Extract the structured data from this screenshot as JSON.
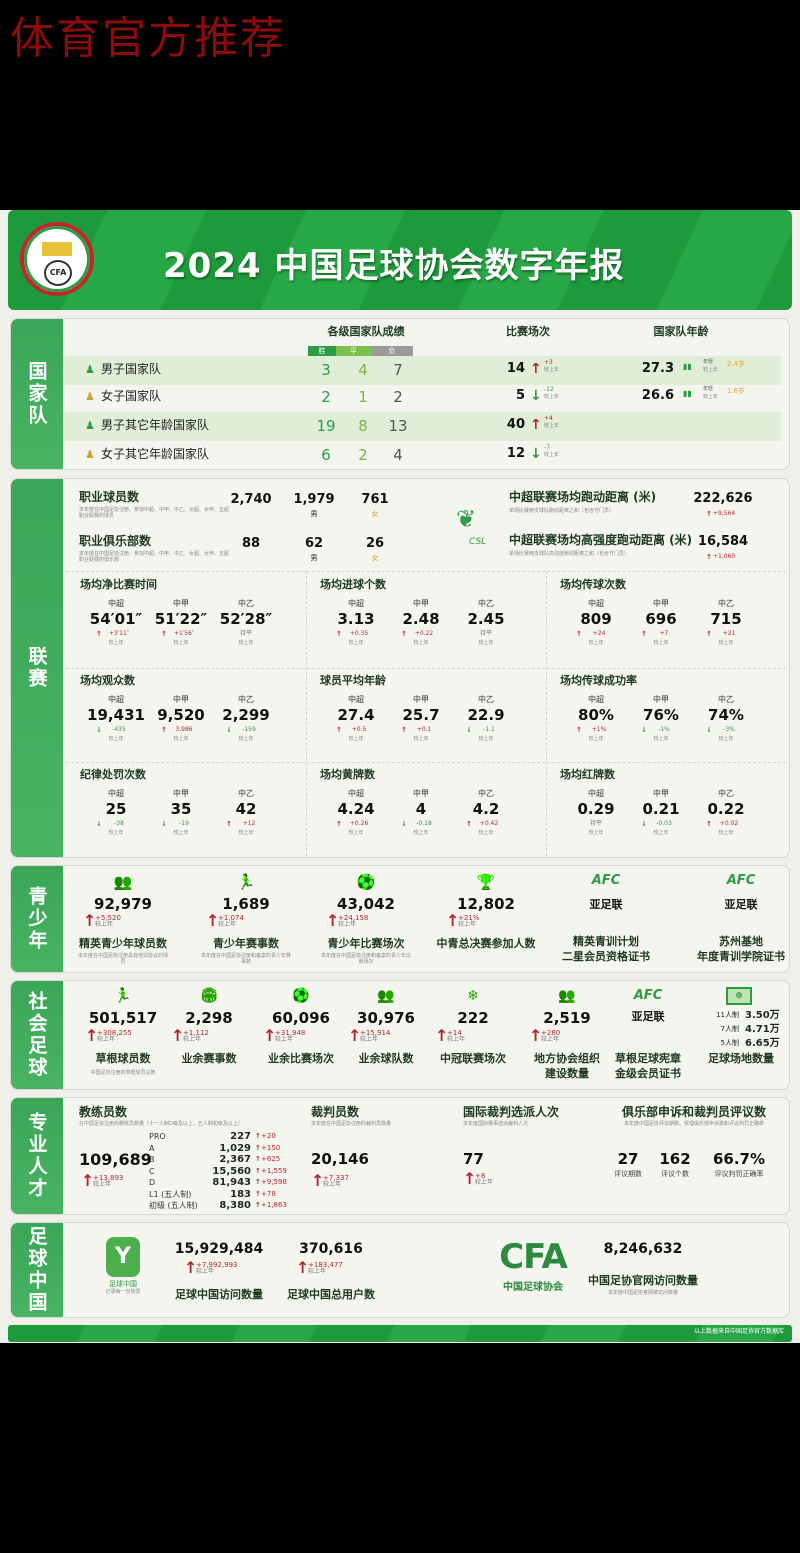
{
  "promo_text": "体育官方推荐",
  "header": {
    "title": "2024 中国足球协会数字年报",
    "logo_text": "CFA",
    "logo_ring_text": "中国足球协会"
  },
  "colors": {
    "brand_green": "#2e9b45",
    "increase": "#b3262e",
    "decrease": "#3f8f45",
    "row_highlight": "#e0eed7"
  },
  "national_team": {
    "label": "国家队",
    "headers": {
      "results": "各级国家队成绩",
      "matches": "比赛场次",
      "age": "国家队年龄"
    },
    "wdl": [
      "胜",
      "平",
      "负"
    ],
    "rows": [
      {
        "name": "男子国家队",
        "icon": "male-person-icon",
        "w": "3",
        "d": "4",
        "l": "7",
        "matches": "14",
        "dir": "up",
        "delta": "+3",
        "cmp": "较上年",
        "age": "27.3",
        "age_tag": "年轻",
        "age_cmp": "较上年",
        "age_delta": "2.4岁"
      },
      {
        "name": "女子国家队",
        "icon": "female-person-icon",
        "w": "2",
        "d": "1",
        "l": "2",
        "matches": "5",
        "dir": "down",
        "delta": "-12",
        "cmp": "较上年",
        "age": "26.6",
        "age_tag": "年轻",
        "age_cmp": "较上年",
        "age_delta": "1.6岁"
      },
      {
        "name": "男子其它年龄国家队",
        "icon": "male-person-icon",
        "w": "19",
        "d": "8",
        "l": "13",
        "matches": "40",
        "dir": "up",
        "delta": "+4",
        "cmp": "较上年"
      },
      {
        "name": "女子其它年龄国家队",
        "icon": "female-person-icon",
        "w": "6",
        "d": "2",
        "l": "4",
        "matches": "12",
        "dir": "down",
        "delta": "-7",
        "cmp": "较上年"
      }
    ]
  },
  "league": {
    "label": "联赛",
    "pro_players": {
      "title": "职业球员数",
      "desc": "本年度在中国足协注册、参加中超、中甲、中乙、女超、女甲、五超职业联赛的球员",
      "total": "2,740",
      "male": "1,979",
      "female": "761",
      "male_label": "男",
      "female_label": "女"
    },
    "pro_clubs": {
      "title": "职业俱乐部数",
      "desc": "本年度在中国足协注册、参加中超、中甲、中乙、女超、女甲、五超职业联赛的俱乐部",
      "total": "88",
      "male": "62",
      "female": "26",
      "male_label": "男",
      "female_label": "女"
    },
    "csl_logo_text": "CSL",
    "running": {
      "title": "中超联赛场均跑动距离 (米)",
      "desc": "单场比赛两支球队跑动距离之和（包含守门员）",
      "value": "222,626",
      "delta": "+9,564"
    },
    "hi_running": {
      "title": "中超联赛场均高强度跑动距离 (米)",
      "desc": "单场比赛两支球队高强度跑动距离之和（包含守门员）",
      "value": "16,584",
      "delta": "+1,060"
    },
    "leagues": [
      "中超",
      "中甲",
      "中乙"
    ],
    "cmp": "较上年",
    "grid": [
      {
        "title": "场均净比赛时间",
        "values": [
          "54′01″",
          "51′22″",
          "52′28″"
        ],
        "deltas": [
          {
            "dir": "up",
            "text": "+3′11″"
          },
          {
            "dir": "up",
            "text": "+1′56″"
          },
          {
            "dir": "flat",
            "text": "持平"
          }
        ]
      },
      {
        "title": "场均进球个数",
        "values": [
          "3.13",
          "2.48",
          "2.45"
        ],
        "deltas": [
          {
            "dir": "up",
            "text": "+0.35"
          },
          {
            "dir": "up",
            "text": "+0.22"
          },
          {
            "dir": "flat",
            "text": "持平"
          }
        ]
      },
      {
        "title": "场均传球次数",
        "values": [
          "809",
          "696",
          "715"
        ],
        "deltas": [
          {
            "dir": "up",
            "text": "+24"
          },
          {
            "dir": "up",
            "text": "+7"
          },
          {
            "dir": "up",
            "text": "+21"
          }
        ]
      },
      {
        "title": "场均观众数",
        "values": [
          "19,431",
          "9,520",
          "2,299"
        ],
        "deltas": [
          {
            "dir": "down",
            "text": "-435"
          },
          {
            "dir": "up",
            "text": "3,986"
          },
          {
            "dir": "down",
            "text": "-159"
          }
        ]
      },
      {
        "title": "球员平均年龄",
        "values": [
          "27.4",
          "25.7",
          "22.9"
        ],
        "deltas": [
          {
            "dir": "up",
            "text": "+0.5"
          },
          {
            "dir": "up",
            "text": "+0.1"
          },
          {
            "dir": "down",
            "text": "-1.1"
          }
        ]
      },
      {
        "title": "场均传球成功率",
        "values": [
          "80%",
          "76%",
          "74%"
        ],
        "deltas": [
          {
            "dir": "up",
            "text": "+1%"
          },
          {
            "dir": "down",
            "text": "-1%"
          },
          {
            "dir": "down",
            "text": "-3%"
          }
        ]
      },
      {
        "title": "纪律处罚次数",
        "values": [
          "25",
          "35",
          "42"
        ],
        "deltas": [
          {
            "dir": "down",
            "text": "-38"
          },
          {
            "dir": "down",
            "text": "-19"
          },
          {
            "dir": "up",
            "text": "+12"
          }
        ]
      },
      {
        "title": "场均黄牌数",
        "values": [
          "4.24",
          "4",
          "4.2"
        ],
        "deltas": [
          {
            "dir": "up",
            "text": "+0.26"
          },
          {
            "dir": "down",
            "text": "-0.18"
          },
          {
            "dir": "up",
            "text": "+0.42"
          }
        ]
      },
      {
        "title": "场均红牌数",
        "values": [
          "0.29",
          "0.21",
          "0.22"
        ],
        "deltas": [
          {
            "dir": "flat",
            "text": "持平"
          },
          {
            "dir": "down",
            "text": "-0.03"
          },
          {
            "dir": "up",
            "text": "+0.02"
          }
        ]
      }
    ]
  },
  "youth": {
    "label": "青少年",
    "items": [
      {
        "icon": "players-group-icon",
        "glyph": "👥",
        "value": "92,979",
        "delta": "+5,520",
        "cmp": "较上年",
        "label": "精英青少年球员数",
        "desc": "本年度在中国足协注册具有培训协议的球员"
      },
      {
        "icon": "kicking-player-icon",
        "glyph": "🏃",
        "value": "1,689",
        "delta": "+1,074",
        "cmp": "较上年",
        "label": "青少年赛事数",
        "desc": "本年度在中国足协注册和备案的青少年赛事数"
      },
      {
        "icon": "soccer-ball-icon",
        "glyph": "⚽",
        "value": "43,042",
        "delta": "+24,158",
        "cmp": "较上年",
        "label": "青少年比赛场次",
        "desc": "本年度在中国足协注册和备案的青少年比赛场次"
      },
      {
        "icon": "trophy-icon",
        "glyph": "🏆",
        "value": "12,802",
        "delta": "+21%",
        "cmp": "较上年",
        "label": "中青总决赛参加人数"
      },
      {
        "icon": "afc-logo-icon",
        "glyph": "AFC",
        "org": "亚足联",
        "label": "精英青训计划",
        "label2": "二星会员资格证书"
      },
      {
        "icon": "afc-logo-icon",
        "glyph": "AFC",
        "org": "亚足联",
        "label": "苏州基地",
        "label2": "年度青训学院证书"
      }
    ]
  },
  "social": {
    "label": "社会足球",
    "items": [
      {
        "icon": "running-player-icon",
        "glyph": "🏃",
        "value": "501,517",
        "delta": "+308,255",
        "cmp": "较上年",
        "label": "草根球员数",
        "desc": "中国足协注册的草根球员总数"
      },
      {
        "icon": "stadium-icon",
        "glyph": "🏟",
        "value": "2,298",
        "delta": "+1,112",
        "cmp": "较上年",
        "label": "业余赛事数"
      },
      {
        "icon": "fast-ball-icon",
        "glyph": "⚽",
        "value": "60,096",
        "delta": "+31,948",
        "cmp": "较上年",
        "label": "业余比赛场次"
      },
      {
        "icon": "team-icon",
        "glyph": "👥",
        "value": "30,976",
        "delta": "+15,914",
        "cmp": "较上年",
        "label": "业余球队数"
      },
      {
        "icon": "snowflake-icon",
        "glyph": "❄",
        "value": "222",
        "delta": "+14",
        "cmp": "较上年",
        "label": "中冠联赛场次"
      },
      {
        "icon": "organization-icon",
        "glyph": "👥",
        "value": "2,519",
        "delta": "+280",
        "cmp": "较上年",
        "label": "地方协会组织",
        "label2": "建设数量"
      },
      {
        "icon": "afc-logo-icon",
        "glyph": "AFC",
        "org": "亚足联",
        "label": "草根足球宪章",
        "label2": "金级会员证书"
      }
    ],
    "fields": {
      "icon": "football-pitch-icon",
      "label": "足球场地数量",
      "rows": [
        {
          "type": "11人制",
          "count": "3.50万"
        },
        {
          "type": "7人制",
          "count": "4.71万"
        },
        {
          "type": "5人制",
          "count": "6.65万"
        }
      ]
    }
  },
  "pro": {
    "label": "专业人才",
    "coaches": {
      "title": "教练员数",
      "desc": "在中国足协注册的教练员数量（十一人制D级及以上，五人制初级及以上）",
      "total": "109,689",
      "delta": "+13,893",
      "cmp": "较上年",
      "levels": [
        {
          "name": "PRO",
          "count": "227",
          "delta": "+20"
        },
        {
          "name": "A",
          "count": "1,029",
          "delta": "+150"
        },
        {
          "name": "B",
          "count": "2,367",
          "delta": "+625"
        },
        {
          "name": "C",
          "count": "15,560",
          "delta": "+1,559"
        },
        {
          "name": "D",
          "count": "81,943",
          "delta": "+9,598"
        },
        {
          "name": "L1 (五人制)",
          "count": "183",
          "delta": "+78"
        },
        {
          "name": "初级 (五人制)",
          "count": "8,380",
          "delta": "+1,863"
        }
      ]
    },
    "referees": {
      "title": "裁判员数",
      "desc": "本年度在中国足协注册的裁判员数量",
      "value": "20,146",
      "delta": "+7,337",
      "cmp": "较上年"
    },
    "intl": {
      "title": "国际裁判选派人次",
      "desc": "本年度国际赛事选派裁判人次",
      "value": "77",
      "delta": "+8",
      "cmp": "较上年"
    },
    "review": {
      "title": "俱乐部申诉和裁判员评议数",
      "desc": "本年度中国足协评议期数、受理俱乐部申诉数和评议判罚正确率",
      "stats": [
        {
          "value": "27",
          "label": "评议期数"
        },
        {
          "value": "162",
          "label": "评议个数"
        },
        {
          "value": "66.7%",
          "label": "评议判罚正确率"
        }
      ]
    }
  },
  "fc": {
    "label": "足球中国",
    "app_name": "足球中国",
    "app_tagline": "记录每一份热爱",
    "visits": {
      "value": "15,929,484",
      "delta": "+7,992,993",
      "cmp": "较上年",
      "label": "足球中国访问数量"
    },
    "users": {
      "value": "370,616",
      "delta": "+183,477",
      "cmp": "较上年",
      "label": "足球中国总用户数"
    },
    "cfa_logo": "CFA",
    "cfa_name": "中国足球协会",
    "site": {
      "value": "8,246,632",
      "label": "中国足协官网访问数量",
      "desc": "本年度中国足协官网被访问数量"
    }
  },
  "footer": "以上数据来自中国足协官方数据库"
}
